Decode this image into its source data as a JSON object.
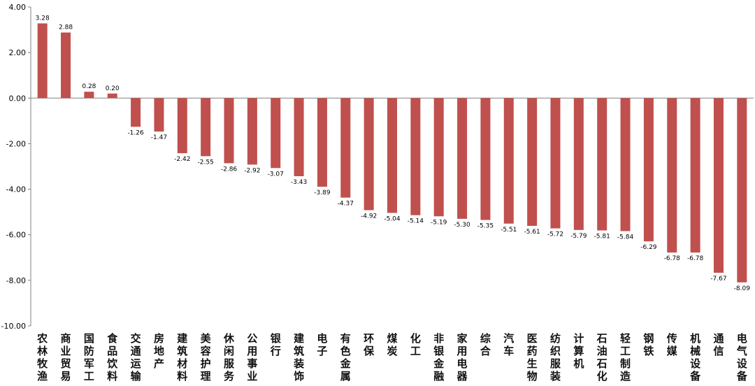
{
  "colors": {
    "bar": "#C0504D",
    "axis": "#808080",
    "text": "#000000"
  },
  "chart_data": {
    "type": "bar",
    "title": "",
    "xlabel": "",
    "ylabel": "",
    "ylim": [
      -10,
      4
    ],
    "yticks": [
      "4.00",
      "2.00",
      "0.00",
      "-2.00",
      "-4.00",
      "-6.00",
      "-8.00",
      "-10.00"
    ],
    "grid": false,
    "legend": "none",
    "categories": [
      "农林牧渔",
      "商业贸易",
      "国防军工",
      "食品饮料",
      "交通运输",
      "房地产",
      "建筑材料",
      "美容护理",
      "休闲服务",
      "公用事业",
      "银行",
      "建筑装饰",
      "电子",
      "有色金属",
      "环保",
      "煤炭",
      "化工",
      "非银金融",
      "家用电器",
      "综合",
      "汽车",
      "医药生物",
      "纺织服装",
      "计算机",
      "石油石化",
      "轻工制造",
      "钢铁",
      "传媒",
      "机械设备",
      "通信",
      "电气设备"
    ],
    "values": [
      3.28,
      2.88,
      0.28,
      0.2,
      -1.26,
      -1.47,
      -2.42,
      -2.55,
      -2.86,
      -2.92,
      -3.07,
      -3.43,
      -3.89,
      -4.37,
      -4.92,
      -5.04,
      -5.14,
      -5.19,
      -5.3,
      -5.35,
      -5.51,
      -5.61,
      -5.72,
      -5.79,
      -5.81,
      -5.84,
      -6.29,
      -6.78,
      -6.78,
      -7.67,
      -8.09
    ],
    "data_labels": [
      "3.28",
      "2.88",
      "0.28",
      "0.20",
      "-1.26",
      "-1.47",
      "-2.42",
      "-2.55",
      "-2.86",
      "-2.92",
      "-3.07",
      "-3.43",
      "-3.89",
      "-4.37",
      "-4.92",
      "-5.04",
      "-5.14",
      "-5.19",
      "-5.30",
      "-5.35",
      "-5.51",
      "-5.61",
      "-5.72",
      "-5.79",
      "-5.81",
      "-5.84",
      "-6.29",
      "-6.78",
      "-6.78",
      "-7.67",
      "-8.09"
    ]
  }
}
